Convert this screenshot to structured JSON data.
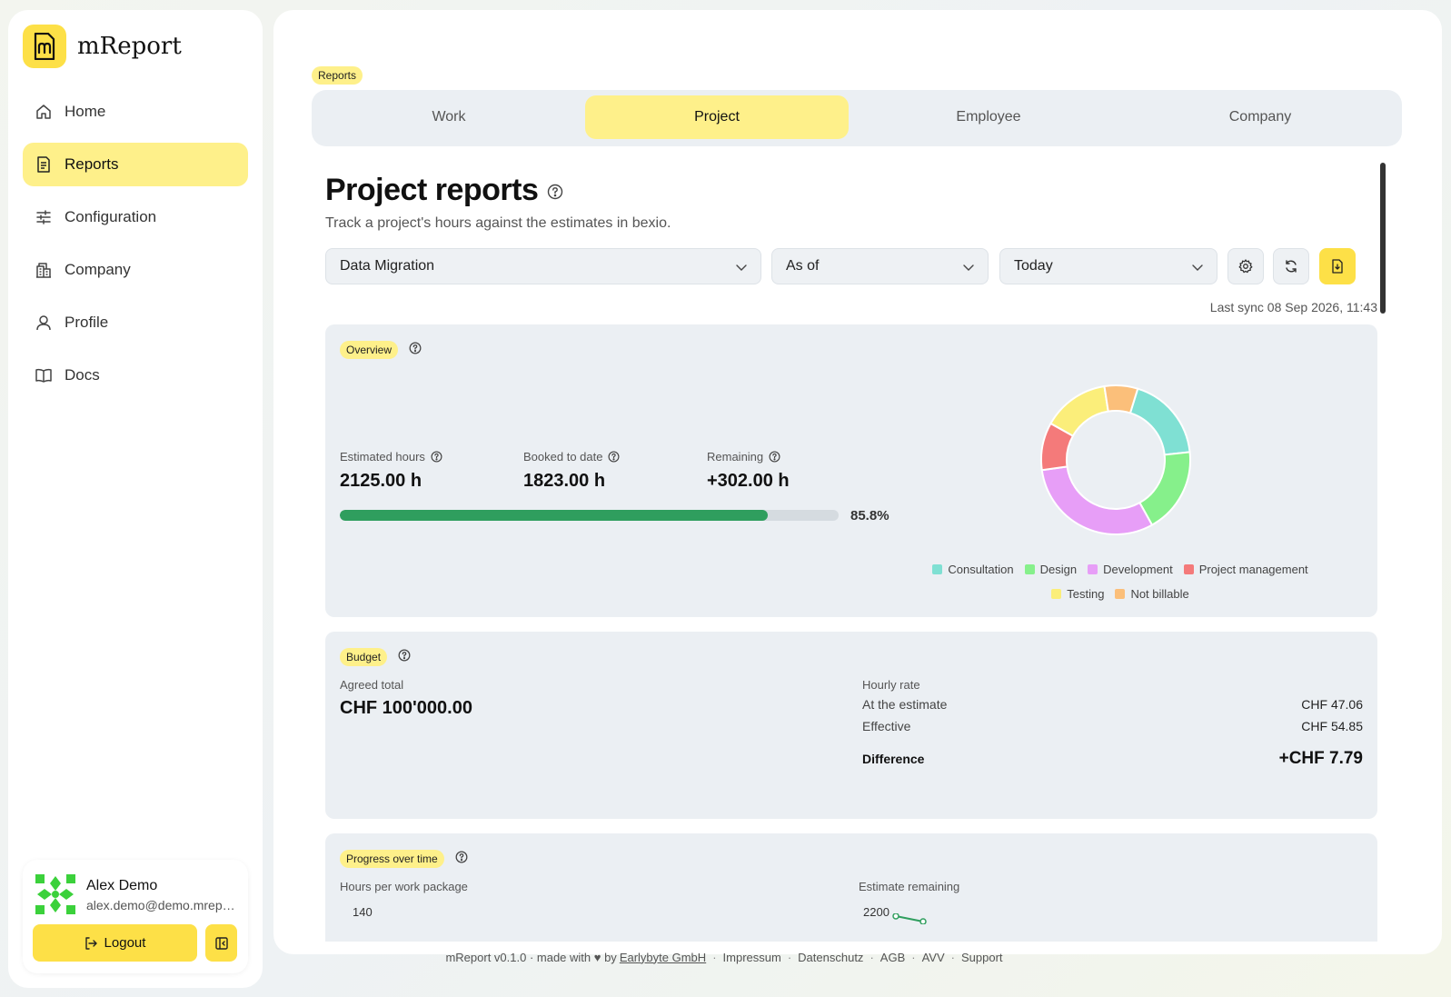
{
  "app": {
    "name": "mReport"
  },
  "sidebar": {
    "items": [
      {
        "label": "Home",
        "icon": "home-icon",
        "active": false
      },
      {
        "label": "Reports",
        "icon": "report-icon",
        "active": true
      },
      {
        "label": "Configuration",
        "icon": "sliders-icon",
        "active": false
      },
      {
        "label": "Company",
        "icon": "building-icon",
        "active": false
      },
      {
        "label": "Profile",
        "icon": "user-icon",
        "active": false
      },
      {
        "label": "Docs",
        "icon": "book-icon",
        "active": false
      }
    ],
    "user": {
      "name": "Alex Demo",
      "email": "alex.demo@demo.mreport.ch"
    },
    "logout_label": "Logout"
  },
  "breadcrumb": "Reports",
  "tabs": [
    {
      "label": "Work",
      "active": false
    },
    {
      "label": "Project",
      "active": true
    },
    {
      "label": "Employee",
      "active": false
    },
    {
      "label": "Company",
      "active": false
    }
  ],
  "page": {
    "title": "Project reports",
    "subtitle": "Track a project's hours against the estimates in bexio."
  },
  "filters": {
    "project": "Data Migration",
    "mode": "As of",
    "date": "Today"
  },
  "last_sync": "Last sync 08 Sep 2026, 11:43",
  "overview": {
    "badge": "Overview",
    "estimated_label": "Estimated hours",
    "estimated_value": "2125.00 h",
    "booked_label": "Booked to date",
    "booked_value": "1823.00 h",
    "remaining_label": "Remaining",
    "remaining_value": "+302.00 h",
    "progress_text": "85.8%",
    "progress_fraction": 0.858,
    "colors": {
      "progress": "#2f9e5e",
      "accent": "#fde047"
    }
  },
  "chart_data": {
    "type": "pie",
    "donut": true,
    "legend_position": "bottom",
    "categories": [
      "Consultation",
      "Design",
      "Development",
      "Project management",
      "Testing",
      "Not billable"
    ],
    "values": [
      18,
      18,
      30,
      10,
      14,
      7
    ],
    "colors": [
      "#7fe0d3",
      "#86f08b",
      "#e79ef7",
      "#f47a7a",
      "#fbee7a",
      "#fbbf7a"
    ]
  },
  "budget": {
    "badge": "Budget",
    "agreed_label": "Agreed total",
    "agreed_value": "CHF 100'000.00",
    "hourly_rate_label": "Hourly rate",
    "at_estimate_label": "At the estimate",
    "at_estimate_value": "CHF 47.06",
    "effective_label": "Effective",
    "effective_value": "CHF 54.85",
    "difference_label": "Difference",
    "difference_value": "+CHF 7.79"
  },
  "progress_over_time": {
    "badge": "Progress over time",
    "left_title": "Hours per work package",
    "left_tick": "140",
    "right_title": "Estimate remaining",
    "right_tick": "2200"
  },
  "footer": {
    "version": "mReport v0.1.0 · made with ♥ by",
    "company": "Earlybyte GmbH",
    "links": [
      "Impressum",
      "Datenschutz",
      "AGB",
      "AVV",
      "Support"
    ]
  }
}
